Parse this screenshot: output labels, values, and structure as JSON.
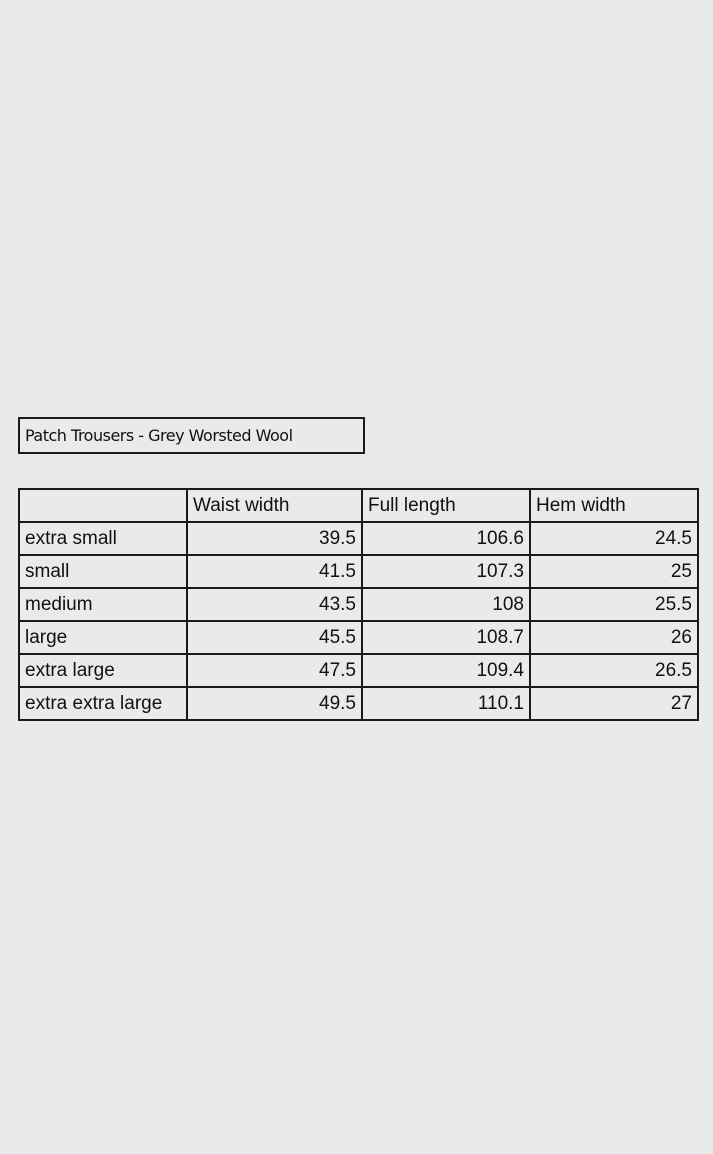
{
  "title": "Patch Trousers - Grey Worsted Wool",
  "table": {
    "headers": [
      "",
      "Waist width",
      "Full length",
      "Hem width"
    ],
    "rows": [
      [
        "extra small",
        "39.5",
        "106.6",
        "24.5"
      ],
      [
        "small",
        "41.5",
        "107.3",
        "25"
      ],
      [
        "medium",
        "43.5",
        "108",
        "25.5"
      ],
      [
        "large",
        "45.5",
        "108.7",
        "26"
      ],
      [
        "extra large",
        "47.5",
        "109.4",
        "26.5"
      ],
      [
        "extra extra large",
        "49.5",
        "110.1",
        "27"
      ]
    ]
  }
}
